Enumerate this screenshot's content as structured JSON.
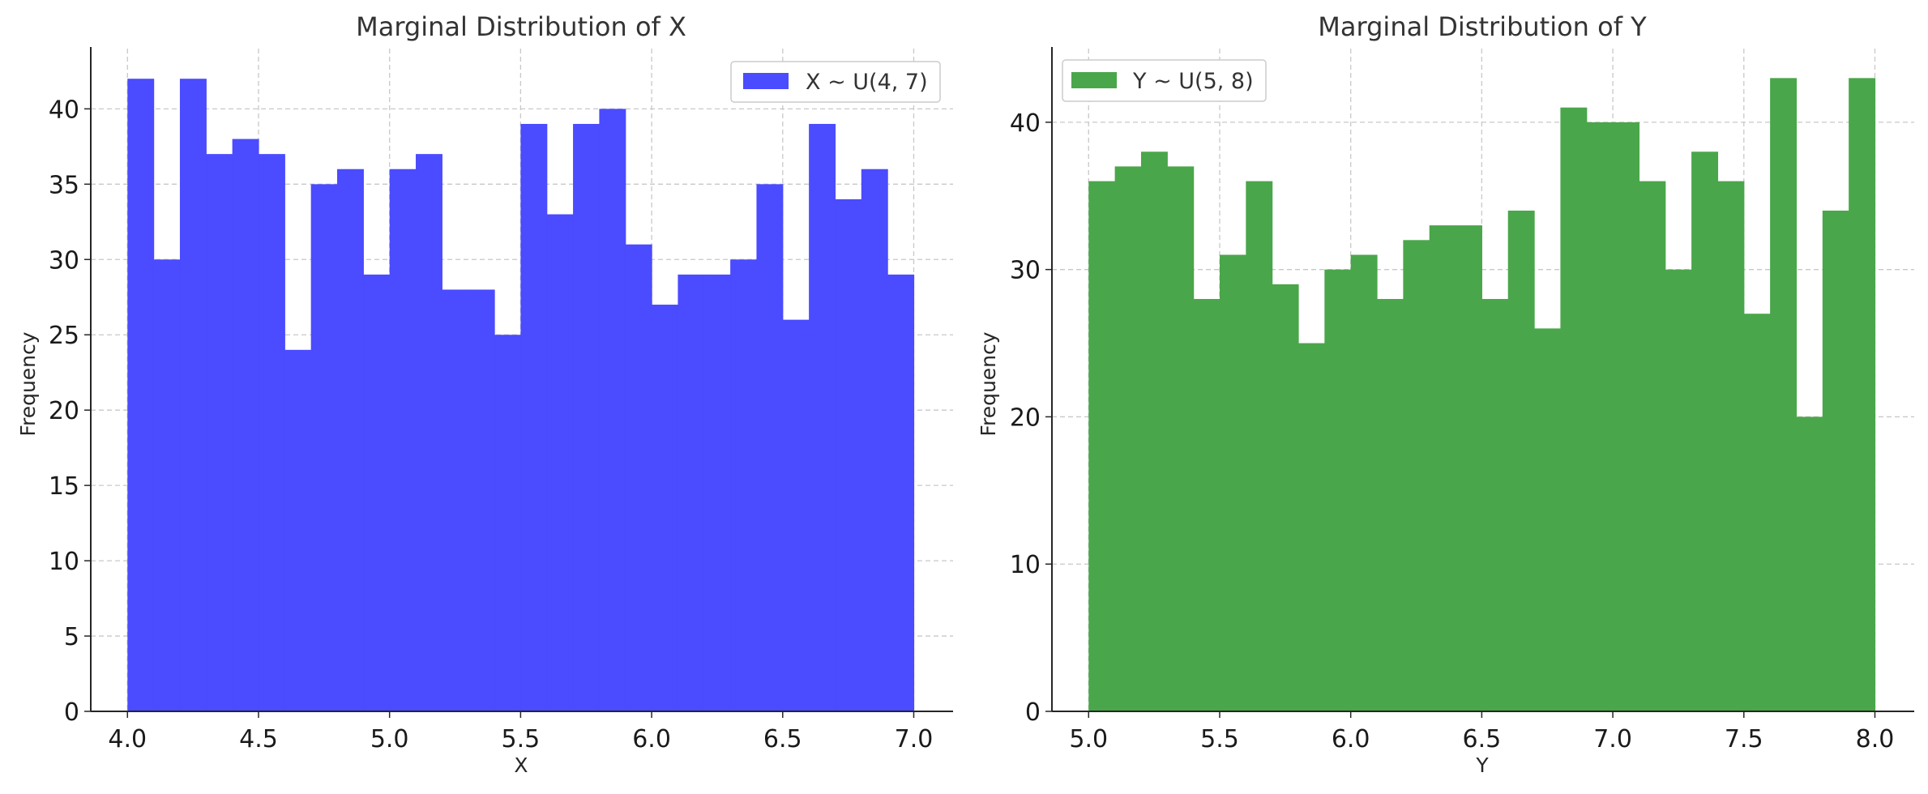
{
  "chart_data": [
    {
      "type": "bar",
      "title": "Marginal Distribution of X",
      "xlabel": "X",
      "ylabel": "Frequency",
      "xlim": [
        3.86,
        7.15
      ],
      "ylim": [
        0,
        44
      ],
      "xticks": [
        "4.0",
        "4.5",
        "5.0",
        "5.5",
        "6.0",
        "6.5",
        "7.0"
      ],
      "yticks": [
        "0",
        "5",
        "10",
        "15",
        "20",
        "25",
        "30",
        "35",
        "40"
      ],
      "grid": true,
      "legend_position": "top-right",
      "bin_edges": [
        4.0,
        4.1,
        4.2,
        4.3,
        4.4,
        4.5,
        4.6,
        4.7,
        4.8,
        4.9,
        5.0,
        5.1,
        5.2,
        5.3,
        5.4,
        5.5,
        5.6,
        5.7,
        5.8,
        5.9,
        6.0,
        6.1,
        6.2,
        6.3,
        6.4,
        6.5,
        6.6,
        6.7,
        6.8,
        6.9,
        7.0
      ],
      "series": [
        {
          "name": "X ~ U(4, 7)",
          "color": "#4b4bff",
          "values": [
            42,
            30,
            42,
            37,
            38,
            37,
            24,
            35,
            36,
            29,
            36,
            37,
            28,
            28,
            25,
            39,
            33,
            39,
            40,
            31,
            27,
            29,
            29,
            30,
            35,
            26,
            39,
            34,
            36,
            29
          ]
        }
      ]
    },
    {
      "type": "bar",
      "title": "Marginal Distribution of Y",
      "xlabel": "Y",
      "ylabel": "Frequency",
      "xlim": [
        4.86,
        8.15
      ],
      "ylim": [
        0,
        45
      ],
      "xticks": [
        "5.0",
        "5.5",
        "6.0",
        "6.5",
        "7.0",
        "7.5",
        "8.0"
      ],
      "yticks": [
        "0",
        "10",
        "20",
        "30",
        "40"
      ],
      "grid": true,
      "legend_position": "top-left",
      "bin_edges": [
        5.0,
        5.1,
        5.2,
        5.3,
        5.4,
        5.5,
        5.6,
        5.7,
        5.8,
        5.9,
        6.0,
        6.1,
        6.2,
        6.3,
        6.4,
        6.5,
        6.6,
        6.7,
        6.8,
        6.9,
        7.0,
        7.1,
        7.2,
        7.3,
        7.4,
        7.5,
        7.6,
        7.7,
        7.8,
        7.9,
        8.0
      ],
      "series": [
        {
          "name": "Y ~ U(5, 8)",
          "color": "#4aa64a",
          "values": [
            36,
            37,
            38,
            37,
            28,
            31,
            36,
            29,
            25,
            30,
            31,
            28,
            32,
            33,
            33,
            28,
            34,
            26,
            41,
            40,
            40,
            36,
            30,
            38,
            36,
            27,
            43,
            20,
            34,
            43
          ]
        }
      ]
    }
  ]
}
